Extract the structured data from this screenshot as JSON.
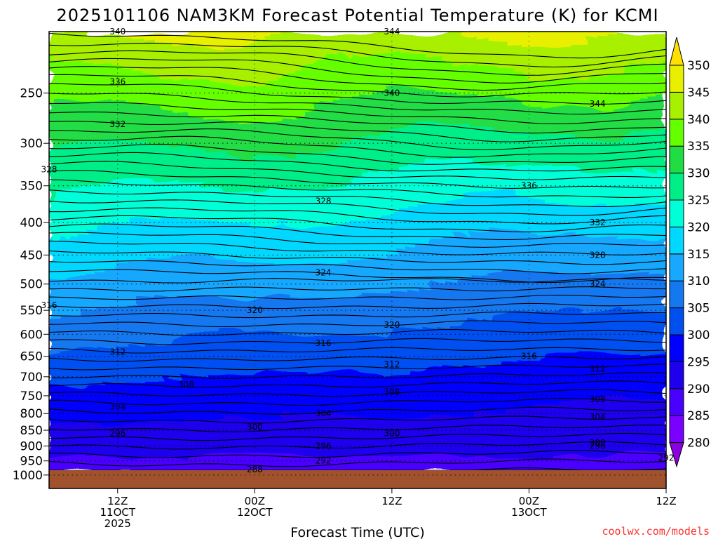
{
  "title": "2025101106 NAM3KM Forecast Potential Temperature (K) for KCMI",
  "credit": "coolwx.com/models",
  "chart_data": {
    "type": "heatmap",
    "title": "2025101106 NAM3KM Forecast Potential Temperature (K) for KCMI",
    "xlabel": "Forecast Time (UTC)",
    "ylabel": "",
    "x_start": "2025-10-11 06Z",
    "x_end": "2025-10-13 12Z",
    "xticks": [
      {
        "time": "2025-10-11 12Z",
        "lines": [
          "12Z",
          "11OCT",
          "2025"
        ]
      },
      {
        "time": "2025-10-12 00Z",
        "lines": [
          "00Z",
          "12OCT"
        ]
      },
      {
        "time": "2025-10-12 12Z",
        "lines": [
          "12Z"
        ]
      },
      {
        "time": "2025-10-13 00Z",
        "lines": [
          "00Z",
          "13OCT"
        ]
      },
      {
        "time": "2025-10-13 12Z",
        "lines": [
          "12Z"
        ]
      }
    ],
    "y_axis": {
      "scale": "log",
      "inverted": true,
      "ticks": [
        250,
        300,
        350,
        400,
        450,
        500,
        550,
        600,
        650,
        700,
        750,
        800,
        850,
        900,
        950,
        1000
      ],
      "range_hpa": [
        1000,
        200
      ]
    },
    "grid": true,
    "colorbar": {
      "levels": [
        280,
        285,
        290,
        295,
        300,
        305,
        310,
        315,
        320,
        325,
        330,
        335,
        340,
        345,
        350
      ],
      "colors": [
        "#8b00e0",
        "#7a00ff",
        "#4a00ff",
        "#1e00ee",
        "#0000ff",
        "#0050f0",
        "#1478f0",
        "#18a8ff",
        "#00d8ff",
        "#00ffd8",
        "#00ee88",
        "#20dd44",
        "#66ff00",
        "#a8f000",
        "#e8f000",
        "#ffe000"
      ]
    },
    "contour_labels": [
      {
        "time": "2025-10-11 12Z",
        "p": 200,
        "value": 340
      },
      {
        "time": "2025-10-12 12Z",
        "p": 200,
        "value": 344
      },
      {
        "time": "2025-10-11 12Z",
        "p": 240,
        "value": 336
      },
      {
        "time": "2025-10-11 12Z",
        "p": 280,
        "value": 332
      },
      {
        "time": "2025-10-11 06Z",
        "p": 330,
        "value": 328
      },
      {
        "time": "2025-10-12 12Z",
        "p": 250,
        "value": 340
      },
      {
        "time": "2025-10-13 06Z",
        "p": 260,
        "value": 344
      },
      {
        "time": "2025-10-13 00Z",
        "p": 350,
        "value": 336
      },
      {
        "time": "2025-10-12 06Z",
        "p": 370,
        "value": 328
      },
      {
        "time": "2025-10-13 06Z",
        "p": 400,
        "value": 332
      },
      {
        "time": "2025-10-13 06Z",
        "p": 450,
        "value": 328
      },
      {
        "time": "2025-10-12 06Z",
        "p": 480,
        "value": 324
      },
      {
        "time": "2025-10-13 06Z",
        "p": 500,
        "value": 324
      },
      {
        "time": "2025-10-11 06Z",
        "p": 540,
        "value": 316
      },
      {
        "time": "2025-10-12 00Z",
        "p": 550,
        "value": 320
      },
      {
        "time": "2025-10-12 12Z",
        "p": 580,
        "value": 320
      },
      {
        "time": "2025-10-12 06Z",
        "p": 620,
        "value": 316
      },
      {
        "time": "2025-10-13 00Z",
        "p": 650,
        "value": 316
      },
      {
        "time": "2025-10-11 12Z",
        "p": 640,
        "value": 312
      },
      {
        "time": "2025-10-12 12Z",
        "p": 670,
        "value": 312
      },
      {
        "time": "2025-10-13 06Z",
        "p": 680,
        "value": 312
      },
      {
        "time": "2025-10-11 18Z",
        "p": 720,
        "value": 308
      },
      {
        "time": "2025-10-12 12Z",
        "p": 740,
        "value": 308
      },
      {
        "time": "2025-10-13 06Z",
        "p": 760,
        "value": 308
      },
      {
        "time": "2025-10-11 12Z",
        "p": 780,
        "value": 304
      },
      {
        "time": "2025-10-12 06Z",
        "p": 800,
        "value": 304
      },
      {
        "time": "2025-10-13 06Z",
        "p": 810,
        "value": 304
      },
      {
        "time": "2025-10-11 12Z",
        "p": 860,
        "value": 296
      },
      {
        "time": "2025-10-12 00Z",
        "p": 840,
        "value": 300
      },
      {
        "time": "2025-10-12 12Z",
        "p": 860,
        "value": 300
      },
      {
        "time": "2025-10-12 06Z",
        "p": 900,
        "value": 296
      },
      {
        "time": "2025-10-13 06Z",
        "p": 890,
        "value": 300
      },
      {
        "time": "2025-10-13 06Z",
        "p": 900,
        "value": 296
      },
      {
        "time": "2025-10-12 06Z",
        "p": 950,
        "value": 292
      },
      {
        "time": "2025-10-13 12Z",
        "p": 940,
        "value": 292
      },
      {
        "time": "2025-10-12 00Z",
        "p": 980,
        "value": 288
      }
    ]
  }
}
